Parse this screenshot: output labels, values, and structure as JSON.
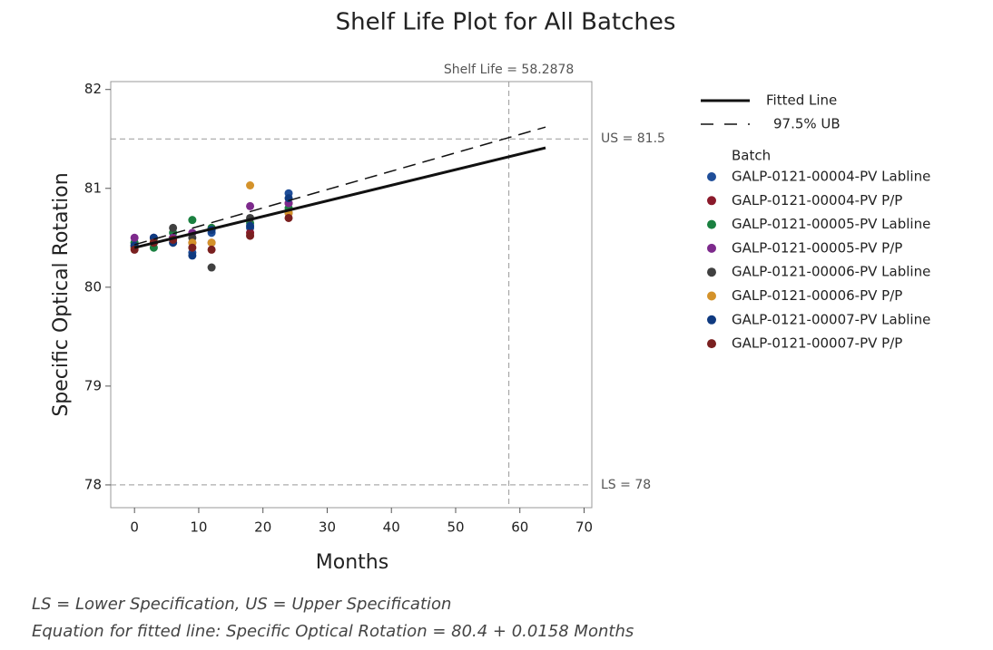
{
  "chart_data": {
    "type": "scatter",
    "title": "Shelf Life Plot for All Batches",
    "xlabel": "Months",
    "ylabel": "Specific Optical Rotation",
    "xlim": [
      -3.7,
      71.2
    ],
    "ylim": [
      77.77,
      82.08
    ],
    "xticks": [
      0,
      10,
      20,
      30,
      40,
      50,
      60,
      70
    ],
    "yticks": [
      78,
      79,
      80,
      81,
      82
    ],
    "x": [
      0,
      3,
      6,
      9,
      12,
      18,
      24
    ],
    "legend_title": "Batch",
    "series": [
      {
        "name": "GALP-0121-00004-PV Labline",
        "color": "#1f4e99",
        "values": [
          80.45,
          80.5,
          80.5,
          80.35,
          80.55,
          80.6,
          80.95
        ]
      },
      {
        "name": "GALP-0121-00004-PV P/P",
        "color": "#8b1a2b",
        "values": [
          80.4,
          80.45,
          80.5,
          80.45,
          80.6,
          80.55,
          80.85
        ]
      },
      {
        "name": "GALP-0121-00005-PV Labline",
        "color": "#1a8040",
        "values": [
          80.45,
          80.4,
          80.55,
          80.68,
          80.6,
          80.65,
          80.8
        ]
      },
      {
        "name": "GALP-0121-00005-PV P/P",
        "color": "#7d2a8c",
        "values": [
          80.5,
          80.5,
          80.5,
          80.55,
          80.45,
          80.82,
          80.85
        ]
      },
      {
        "name": "GALP-0121-00006-PV Labline",
        "color": "#404040",
        "values": [
          80.42,
          80.45,
          80.6,
          80.5,
          80.2,
          80.7,
          80.75
        ]
      },
      {
        "name": "GALP-0121-00006-PV P/P",
        "color": "#d4922a",
        "values": [
          80.4,
          80.48,
          80.45,
          80.45,
          80.45,
          81.03,
          80.75
        ]
      },
      {
        "name": "GALP-0121-00007-PV Labline",
        "color": "#0f3a80",
        "values": [
          80.42,
          80.5,
          80.45,
          80.32,
          80.58,
          80.62,
          80.9
        ]
      },
      {
        "name": "GALP-0121-00007-PV P/P",
        "color": "#7a2020",
        "values": [
          80.38,
          80.45,
          80.48,
          80.4,
          80.38,
          80.52,
          80.7
        ]
      }
    ],
    "lines": [
      {
        "name": "Fitted Line",
        "x": [
          0,
          64
        ],
        "values": [
          80.4,
          81.41
        ],
        "color": "#111",
        "dashed": false
      },
      {
        "name": "97.5% UB",
        "x": [
          0,
          64
        ],
        "values": [
          80.43,
          81.62
        ],
        "color": "#111",
        "dashed": true
      }
    ],
    "upper_spec": {
      "value": 81.5,
      "label": "US = 81.5"
    },
    "lower_spec": {
      "value": 78,
      "label": "LS = 78"
    },
    "shelf_life": {
      "value": 58.2878,
      "label": "Shelf Life = 58.2878"
    },
    "footnotes": [
      "LS = Lower Specification, US = Upper Specification",
      "Equation for fitted line: Specific Optical Rotation = 80.4 + 0.0158 Months"
    ]
  }
}
